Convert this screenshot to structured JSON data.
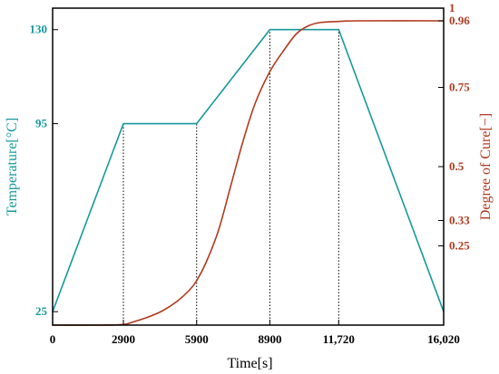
{
  "chart_data": {
    "type": "line",
    "xlabel": "Time[s]",
    "ylabel_left": "Temperature[°C]",
    "ylabel_right": "Degree of Cure[−]",
    "xlim": [
      0,
      16020
    ],
    "ylim_left": [
      20,
      138
    ],
    "ylim_right": [
      0,
      1
    ],
    "x_ticks": [
      {
        "value": 0,
        "label": "0"
      },
      {
        "value": 2900,
        "label": "2900"
      },
      {
        "value": 5900,
        "label": "5900"
      },
      {
        "value": 8900,
        "label": "8900"
      },
      {
        "value": 11720,
        "label": "11,720"
      },
      {
        "value": 16020,
        "label": "16,020"
      }
    ],
    "left_ticks": [
      {
        "value": 25,
        "label": "25"
      },
      {
        "value": 95,
        "label": "95"
      },
      {
        "value": 130,
        "label": "130"
      }
    ],
    "right_ticks": [
      {
        "value": 0.25,
        "label": "0.25"
      },
      {
        "value": 0.33,
        "label": "0.33"
      },
      {
        "value": 0.5,
        "label": "0.5"
      },
      {
        "value": 0.75,
        "label": "0.75"
      },
      {
        "value": 0.96,
        "label": "0.96"
      },
      {
        "value": 1,
        "label": "1"
      }
    ],
    "series": [
      {
        "axis": "left",
        "color": "#17999b",
        "x": [
          0,
          2900,
          5900,
          8900,
          11720,
          16020
        ],
        "y": [
          25,
          95,
          95,
          130,
          130,
          25
        ]
      },
      {
        "axis": "right",
        "color": "#b03a1e",
        "x": [
          0,
          2000,
          2900,
          3300,
          3900,
          4500,
          5100,
          5600,
          5900,
          6300,
          6800,
          7300,
          7800,
          8300,
          8900,
          9500,
          10000,
          10500,
          11000,
          11720,
          12500,
          16020
        ],
        "y": [
          0.0,
          0.0,
          0.002,
          0.01,
          0.025,
          0.045,
          0.075,
          0.11,
          0.14,
          0.2,
          0.3,
          0.44,
          0.58,
          0.7,
          0.8,
          0.87,
          0.92,
          0.945,
          0.955,
          0.958,
          0.96,
          0.96
        ]
      }
    ],
    "reference_lines": [
      2900,
      5900,
      8900,
      11720
    ],
    "grid": false,
    "colors": {
      "temperature": "#17999b",
      "cure": "#b03a1e",
      "axis": "#000000"
    }
  }
}
